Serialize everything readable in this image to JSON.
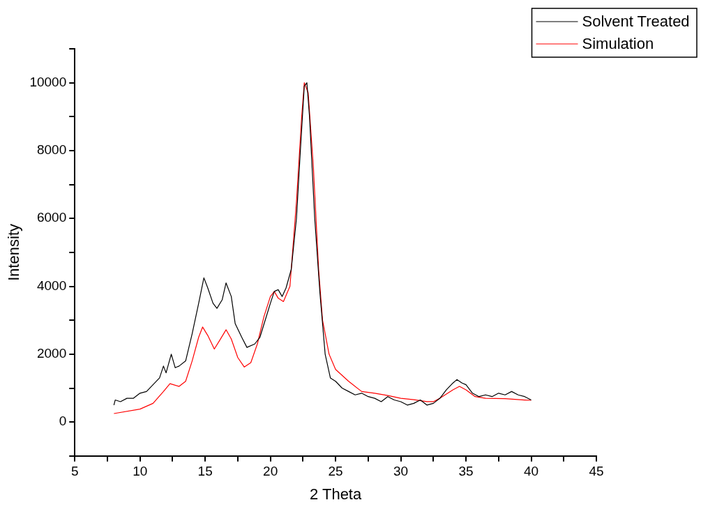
{
  "chart_data": {
    "type": "line",
    "xlabel": "2 Theta",
    "ylabel": "Intensity",
    "xlim": [
      5,
      45
    ],
    "ylim": [
      -1000,
      11000
    ],
    "xticks": [
      5,
      {
        "value": 7.5,
        "label": null
      },
      10,
      {
        "value": 12.5,
        "label": null
      },
      15,
      {
        "value": 17.5,
        "label": null
      },
      20,
      {
        "value": 22.5,
        "label": null
      },
      25,
      {
        "value": 27.5,
        "label": null
      },
      30,
      {
        "value": 32.5,
        "label": null
      },
      35,
      {
        "value": 37.5,
        "label": null
      },
      40,
      {
        "value": 42.5,
        "label": null
      },
      45
    ],
    "yticks": [
      {
        "value": -1000,
        "label": null
      },
      0,
      {
        "value": 1000,
        "label": null
      },
      2000,
      {
        "value": 3000,
        "label": null
      },
      4000,
      {
        "value": 5000,
        "label": null
      },
      6000,
      {
        "value": 7000,
        "label": null
      },
      8000,
      {
        "value": 9000,
        "label": null
      },
      10000,
      {
        "value": 11000,
        "label": null
      }
    ],
    "grid": false,
    "legend": "top right",
    "marker": "none",
    "line_style": "solid",
    "series": [
      {
        "name": "Solvent Treated",
        "color": "#000000",
        "x": [
          8,
          8.1,
          8.5,
          9,
          9.5,
          10,
          10.5,
          11,
          11.5,
          11.8,
          12,
          12.4,
          12.7,
          13,
          13.5,
          14,
          14.5,
          14.9,
          15.2,
          15.6,
          15.9,
          16.3,
          16.6,
          17,
          17.3,
          17.8,
          18.2,
          18.8,
          19.2,
          19.6,
          20,
          20.3,
          20.6,
          20.9,
          21.2,
          21.6,
          22,
          22.3,
          22.6,
          22.8,
          23,
          23.4,
          23.8,
          24.2,
          24.6,
          25,
          25.5,
          26,
          26.5,
          27,
          27.5,
          28,
          28.5,
          29,
          29.5,
          30,
          30.5,
          31,
          31.5,
          32,
          32.5,
          33,
          33.5,
          34,
          34.3,
          34.7,
          35,
          35.5,
          36,
          36.5,
          37,
          37.5,
          38,
          38.5,
          39,
          39.5,
          40
        ],
        "values": [
          500,
          650,
          600,
          700,
          700,
          850,
          900,
          1100,
          1300,
          1650,
          1450,
          2000,
          1600,
          1650,
          1800,
          2600,
          3500,
          4250,
          3950,
          3500,
          3350,
          3600,
          4100,
          3700,
          2900,
          2500,
          2200,
          2300,
          2500,
          3000,
          3500,
          3850,
          3900,
          3700,
          3950,
          4500,
          6000,
          8000,
          9900,
          10000,
          9000,
          6000,
          3800,
          2000,
          1300,
          1200,
          1000,
          900,
          800,
          850,
          750,
          700,
          600,
          750,
          650,
          600,
          500,
          550,
          650,
          500,
          550,
          700,
          950,
          1150,
          1250,
          1150,
          1100,
          850,
          750,
          800,
          750,
          850,
          800,
          900,
          800,
          750,
          650
        ]
      },
      {
        "name": "Simulation",
        "color": "#ff0000",
        "x": [
          8,
          10,
          11,
          11.8,
          12.3,
          13,
          13.5,
          14,
          14.5,
          14.8,
          15.2,
          15.7,
          16.1,
          16.6,
          17,
          17.5,
          18,
          18.5,
          19,
          19.5,
          20,
          20.3,
          20.6,
          21,
          21.5,
          22,
          22.4,
          22.6,
          22.9,
          23.3,
          23.7,
          24,
          24.5,
          25,
          26,
          27,
          28,
          29,
          30,
          31,
          32,
          32.5,
          33,
          34,
          34.5,
          35,
          35.7,
          36.5,
          38,
          39.5,
          40
        ],
        "values": [
          250,
          380,
          550,
          900,
          1130,
          1050,
          1200,
          1800,
          2500,
          2800,
          2550,
          2150,
          2400,
          2720,
          2450,
          1900,
          1620,
          1750,
          2300,
          3100,
          3700,
          3850,
          3650,
          3550,
          4000,
          6500,
          9000,
          10000,
          9700,
          7500,
          4500,
          3000,
          2000,
          1550,
          1200,
          900,
          850,
          780,
          700,
          660,
          600,
          600,
          700,
          950,
          1050,
          950,
          750,
          700,
          690,
          650,
          640
        ]
      }
    ]
  }
}
